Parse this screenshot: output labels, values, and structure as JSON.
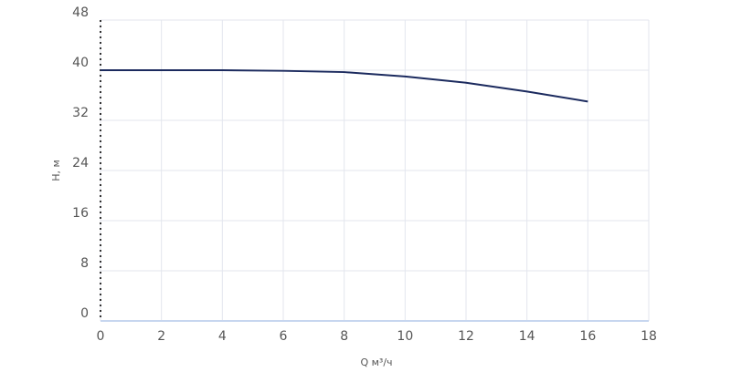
{
  "chart_data": {
    "type": "line",
    "x_label": "Q м³/ч",
    "y_label": "H, м",
    "x": [
      0,
      2,
      4,
      6,
      8,
      10,
      12,
      14,
      16
    ],
    "series": [
      {
        "color": "#1b2a5e",
        "values": [
          40,
          40,
          40,
          39.9,
          39.7,
          39.0,
          38.0,
          36.6,
          35.0
        ]
      }
    ],
    "xlim": [
      0,
      18
    ],
    "xticks": [
      0,
      2,
      4,
      6,
      8,
      10,
      12,
      14,
      16,
      18
    ],
    "ylim": [
      0,
      48
    ],
    "yticks": [
      0,
      8,
      16,
      24,
      32,
      40,
      48
    ],
    "grid": true
  }
}
